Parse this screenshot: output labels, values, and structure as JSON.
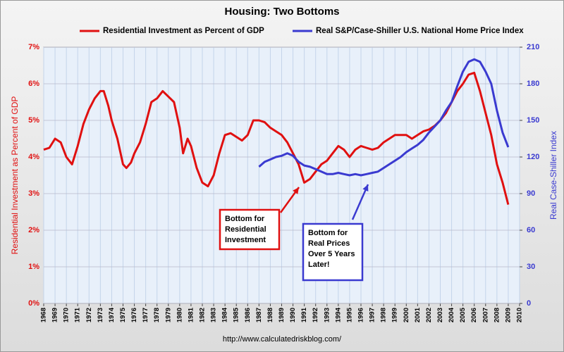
{
  "chart_data": {
    "type": "line",
    "title": "Housing: Two Bottoms",
    "y_label": "Residential Investment as Percent of GDP",
    "y2_label": "Real Case-Shiller Index",
    "source": "http://www.calculatedriskblog.com/",
    "xlim": [
      1968,
      2010
    ],
    "xticks": [
      1968,
      1969,
      1970,
      1971,
      1972,
      1973,
      1974,
      1975,
      1976,
      1977,
      1978,
      1979,
      1980,
      1981,
      1982,
      1983,
      1984,
      1985,
      1986,
      1987,
      1988,
      1989,
      1990,
      1991,
      1992,
      1993,
      1994,
      1995,
      1996,
      1997,
      1998,
      1999,
      2000,
      2001,
      2002,
      2003,
      2004,
      2005,
      2006,
      2007,
      2008,
      2009,
      2010
    ],
    "ylim": [
      0,
      7
    ],
    "yticks": [
      {
        "value": 0,
        "label": "0%"
      },
      {
        "value": 1,
        "label": "1%"
      },
      {
        "value": 2,
        "label": "2%"
      },
      {
        "value": 3,
        "label": "3%"
      },
      {
        "value": 4,
        "label": "4%"
      },
      {
        "value": 5,
        "label": "5%"
      },
      {
        "value": 6,
        "label": "6%"
      },
      {
        "value": 7,
        "label": "7%"
      }
    ],
    "y2lim": [
      0,
      210
    ],
    "y2ticks": [
      0,
      30,
      60,
      90,
      120,
      150,
      180,
      210
    ],
    "grid": true,
    "series": [
      {
        "name": "Residential Investment as Percent of GDP",
        "color": "#e01010",
        "x": [
          1968.0,
          1968.5,
          1969.0,
          1969.5,
          1970.0,
          1970.5,
          1971.0,
          1971.5,
          1972.0,
          1972.5,
          1973.0,
          1973.3,
          1973.7,
          1974.0,
          1974.5,
          1975.0,
          1975.3,
          1975.7,
          1976.0,
          1976.5,
          1977.0,
          1977.5,
          1978.0,
          1978.5,
          1979.0,
          1979.5,
          1980.0,
          1980.3,
          1980.7,
          1981.0,
          1981.5,
          1982.0,
          1982.5,
          1983.0,
          1983.5,
          1984.0,
          1984.5,
          1985.0,
          1985.5,
          1986.0,
          1986.5,
          1987.0,
          1987.5,
          1988.0,
          1988.5,
          1989.0,
          1989.5,
          1990.0,
          1990.5,
          1991.0,
          1991.5,
          1992.0,
          1992.5,
          1993.0,
          1993.5,
          1994.0,
          1994.5,
          1995.0,
          1995.5,
          1996.0,
          1996.5,
          1997.0,
          1997.5,
          1998.0,
          1998.5,
          1999.0,
          1999.5,
          2000.0,
          2000.5,
          2001.0,
          2001.5,
          2002.0,
          2002.5,
          2003.0,
          2003.5,
          2004.0,
          2004.5,
          2005.0,
          2005.5,
          2006.0,
          2006.5,
          2007.0,
          2007.5,
          2008.0,
          2008.5,
          2009.0
        ],
        "values": [
          4.2,
          4.25,
          4.5,
          4.4,
          4.0,
          3.8,
          4.3,
          4.9,
          5.3,
          5.6,
          5.8,
          5.8,
          5.4,
          5.0,
          4.5,
          3.8,
          3.7,
          3.85,
          4.1,
          4.4,
          4.9,
          5.5,
          5.6,
          5.8,
          5.65,
          5.5,
          4.8,
          4.1,
          4.5,
          4.3,
          3.7,
          3.3,
          3.2,
          3.5,
          4.1,
          4.6,
          4.65,
          4.55,
          4.45,
          4.6,
          5.0,
          5.0,
          4.95,
          4.8,
          4.7,
          4.6,
          4.4,
          4.1,
          3.8,
          3.3,
          3.4,
          3.6,
          3.8,
          3.9,
          4.1,
          4.3,
          4.2,
          4.0,
          4.2,
          4.3,
          4.25,
          4.2,
          4.25,
          4.4,
          4.5,
          4.6,
          4.6,
          4.6,
          4.5,
          4.6,
          4.7,
          4.75,
          4.85,
          5.0,
          5.2,
          5.5,
          5.8,
          6.0,
          6.25,
          6.3,
          5.8,
          5.2,
          4.6,
          3.8,
          3.3,
          2.7
        ]
      },
      {
        "name": "Real S&P/Case-Shiller U.S. National Home Price Index",
        "color": "#3a3ad0",
        "axis": "y2",
        "x": [
          1987.0,
          1987.5,
          1988.0,
          1988.5,
          1989.0,
          1989.5,
          1990.0,
          1990.5,
          1991.0,
          1991.5,
          1992.0,
          1992.5,
          1993.0,
          1993.5,
          1994.0,
          1994.5,
          1995.0,
          1995.5,
          1996.0,
          1996.5,
          1997.0,
          1997.5,
          1998.0,
          1998.5,
          1999.0,
          1999.5,
          2000.0,
          2000.5,
          2001.0,
          2001.5,
          2002.0,
          2002.5,
          2003.0,
          2003.5,
          2004.0,
          2004.5,
          2005.0,
          2005.5,
          2006.0,
          2006.5,
          2007.0,
          2007.5,
          2008.0,
          2008.5,
          2009.0
        ],
        "values": [
          112,
          116,
          118,
          120,
          121,
          123,
          121,
          116,
          113,
          112,
          110,
          108,
          106,
          106,
          107,
          106,
          105,
          106,
          105,
          106,
          107,
          108,
          111,
          114,
          117,
          120,
          124,
          127,
          130,
          134,
          140,
          145,
          150,
          158,
          165,
          178,
          190,
          198,
          200,
          198,
          190,
          180,
          158,
          140,
          128
        ]
      }
    ],
    "annotations": [
      {
        "lines": [
          "Bottom for",
          "Residential",
          "Investment"
        ],
        "color": "#e01010"
      },
      {
        "lines": [
          "Bottom for",
          "Real Prices",
          "Over 5 Years",
          "Later!"
        ],
        "color": "#3a3ad0"
      }
    ]
  }
}
